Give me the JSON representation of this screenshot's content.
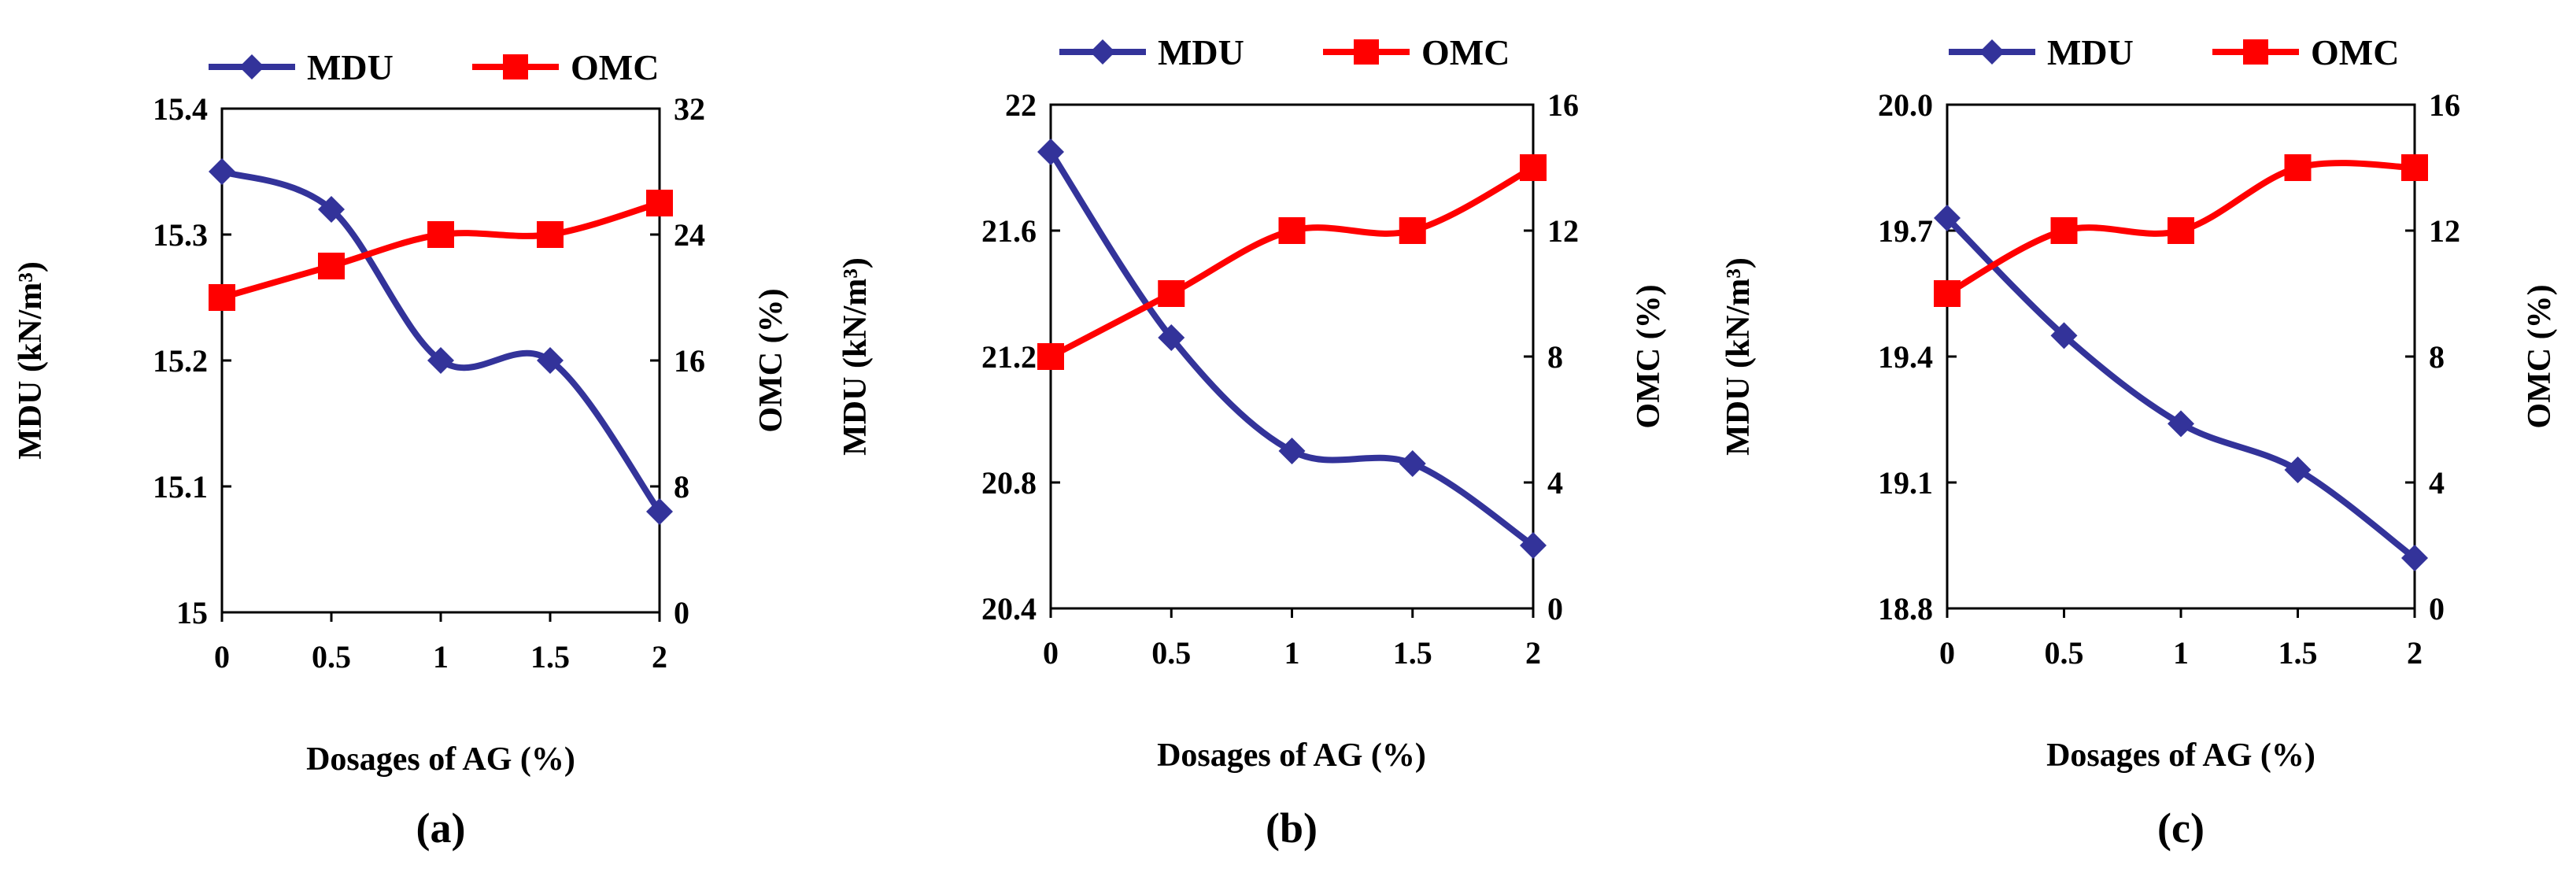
{
  "chart_data": [
    {
      "type": "line",
      "panel_label": "(a)",
      "categories": [
        "0",
        "0.5",
        "1",
        "1.5",
        "2"
      ],
      "xlabel": "Dosages of AG (%)",
      "ylabel": "MDU (kN/m³)",
      "y2label": "OMC (%)",
      "ylim": [
        15.0,
        15.4
      ],
      "yticks": [
        "15",
        "15.1",
        "15.2",
        "15.3",
        "15.4"
      ],
      "y2lim": [
        0,
        32
      ],
      "y2ticks": [
        "0",
        "8",
        "16",
        "24",
        "32"
      ],
      "series": [
        {
          "name": "MDU",
          "axis": "left",
          "color": "#33339a",
          "marker": "diamond",
          "values": [
            15.35,
            15.32,
            15.2,
            15.2,
            15.08
          ]
        },
        {
          "name": "OMC",
          "axis": "right",
          "color": "#ff0000",
          "marker": "square",
          "values": [
            20,
            22,
            24,
            24,
            26
          ]
        }
      ]
    },
    {
      "type": "line",
      "panel_label": "(b)",
      "categories": [
        "0",
        "0.5",
        "1",
        "1.5",
        "2"
      ],
      "xlabel": "Dosages of AG (%)",
      "ylabel": "MDU (kN/m³)",
      "y2label": "OMC (%)",
      "ylim": [
        20.4,
        22.0
      ],
      "yticks": [
        "20.4",
        "20.8",
        "21.2",
        "21.6",
        "22"
      ],
      "y2lim": [
        0,
        16
      ],
      "y2ticks": [
        "0",
        "4",
        "8",
        "12",
        "16"
      ],
      "series": [
        {
          "name": "MDU",
          "axis": "left",
          "color": "#33339a",
          "marker": "diamond",
          "values": [
            21.85,
            21.26,
            20.9,
            20.86,
            20.6
          ]
        },
        {
          "name": "OMC",
          "axis": "right",
          "color": "#ff0000",
          "marker": "square",
          "values": [
            8,
            10,
            12,
            12,
            14
          ]
        }
      ]
    },
    {
      "type": "line",
      "panel_label": "(c)",
      "categories": [
        "0",
        "0.5",
        "1",
        "1.5",
        "2"
      ],
      "xlabel": "Dosages of AG (%)",
      "ylabel": "MDU (kN/m³)",
      "y2label": "OMC (%)",
      "ylim": [
        18.8,
        20.0
      ],
      "yticks": [
        "18.8",
        "19.1",
        "19.4",
        "19.7",
        "20.0"
      ],
      "y2lim": [
        0,
        16
      ],
      "y2ticks": [
        "0",
        "4",
        "8",
        "12",
        "16"
      ],
      "series": [
        {
          "name": "MDU",
          "axis": "left",
          "color": "#33339a",
          "marker": "diamond",
          "values": [
            19.73,
            19.45,
            19.24,
            19.13,
            18.92
          ]
        },
        {
          "name": "OMC",
          "axis": "right",
          "color": "#ff0000",
          "marker": "square",
          "values": [
            10,
            12,
            12,
            14,
            14
          ]
        }
      ]
    }
  ]
}
